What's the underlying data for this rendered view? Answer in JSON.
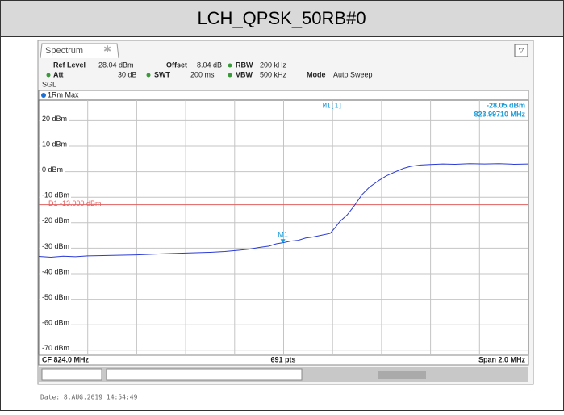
{
  "page_title": "LCH_QPSK_50RB#0",
  "header": {
    "tab": "Spectrum",
    "ref_level_label": "Ref Level",
    "ref_level": "28.04 dBm",
    "offset_label": "Offset",
    "offset": "8.04 dB",
    "rbw_label": "RBW",
    "rbw": "200 kHz",
    "att_label": "Att",
    "att": "30 dB",
    "swt_label": "SWT",
    "swt": "200 ms",
    "vbw_label": "VBW",
    "vbw": "500 kHz",
    "mode_label": "Mode",
    "mode": "Auto Sweep",
    "sgl": "SGL"
  },
  "chart_data": {
    "type": "line",
    "xlim": [
      823,
      825
    ],
    "xticks": [
      823.2,
      823.4,
      823.6,
      823.8,
      824.0,
      824.2,
      824.4,
      824.6,
      824.8
    ],
    "ylim": [
      -71.96,
      28.04
    ],
    "yticks": [
      {
        "value": 20,
        "label": "20 dBm"
      },
      {
        "value": 10,
        "label": "10 dBm"
      },
      {
        "value": 0,
        "label": "0 dBm"
      },
      {
        "value": -10,
        "label": "-10 dBm"
      },
      {
        "value": -20,
        "label": "-20 dBm"
      },
      {
        "value": -30,
        "label": "-30 dBm"
      },
      {
        "value": -40,
        "label": "-40 dBm"
      },
      {
        "value": -50,
        "label": "-50 dBm"
      },
      {
        "value": -60,
        "label": "-60 dBm"
      },
      {
        "value": -70,
        "label": "-70 dBm"
      }
    ],
    "grid": true,
    "series": [
      {
        "name": "1Rm Max",
        "color": "#2b3bd6",
        "x": [
          823.0,
          823.05,
          823.1,
          823.15,
          823.2,
          823.3,
          823.4,
          823.5,
          823.6,
          823.7,
          823.76,
          823.82,
          823.86,
          823.9,
          823.94,
          823.97,
          824.0,
          824.03,
          824.06,
          824.09,
          824.12,
          824.15,
          824.19,
          824.21,
          824.23,
          824.26,
          824.29,
          824.32,
          824.35,
          824.39,
          824.42,
          824.46,
          824.49,
          824.52,
          824.56,
          824.6,
          824.65,
          824.7,
          824.76,
          824.82,
          824.88,
          824.94,
          825.0
        ],
        "values": [
          -33.2,
          -33.5,
          -33.1,
          -33.3,
          -33.0,
          -32.8,
          -32.6,
          -32.2,
          -31.9,
          -31.6,
          -31.3,
          -30.8,
          -30.4,
          -29.7,
          -29.2,
          -28.3,
          -27.8,
          -27.2,
          -26.9,
          -26.0,
          -25.6,
          -25.0,
          -24.2,
          -22.0,
          -19.5,
          -16.9,
          -13.2,
          -9.0,
          -6.1,
          -3.4,
          -1.6,
          0.1,
          1.3,
          2.1,
          2.6,
          2.8,
          3.0,
          2.9,
          3.1,
          3.0,
          3.1,
          2.9,
          3.0
        ]
      }
    ],
    "marker": {
      "name": "M1",
      "label": "M1[1]",
      "x": 823.9971,
      "y": -28.05,
      "y_label": "-28.05 dBm",
      "x_label": "823.99710 MHz"
    },
    "display_line": {
      "value": -13,
      "label": "D1 -13.000 dBm",
      "color": "#e06060"
    },
    "footer": {
      "center": "CF 824.0 MHz",
      "points": "691 pts",
      "span": "Span 2.0 MHz"
    }
  },
  "date": "Date: 8.AUG.2019  14:54:49"
}
